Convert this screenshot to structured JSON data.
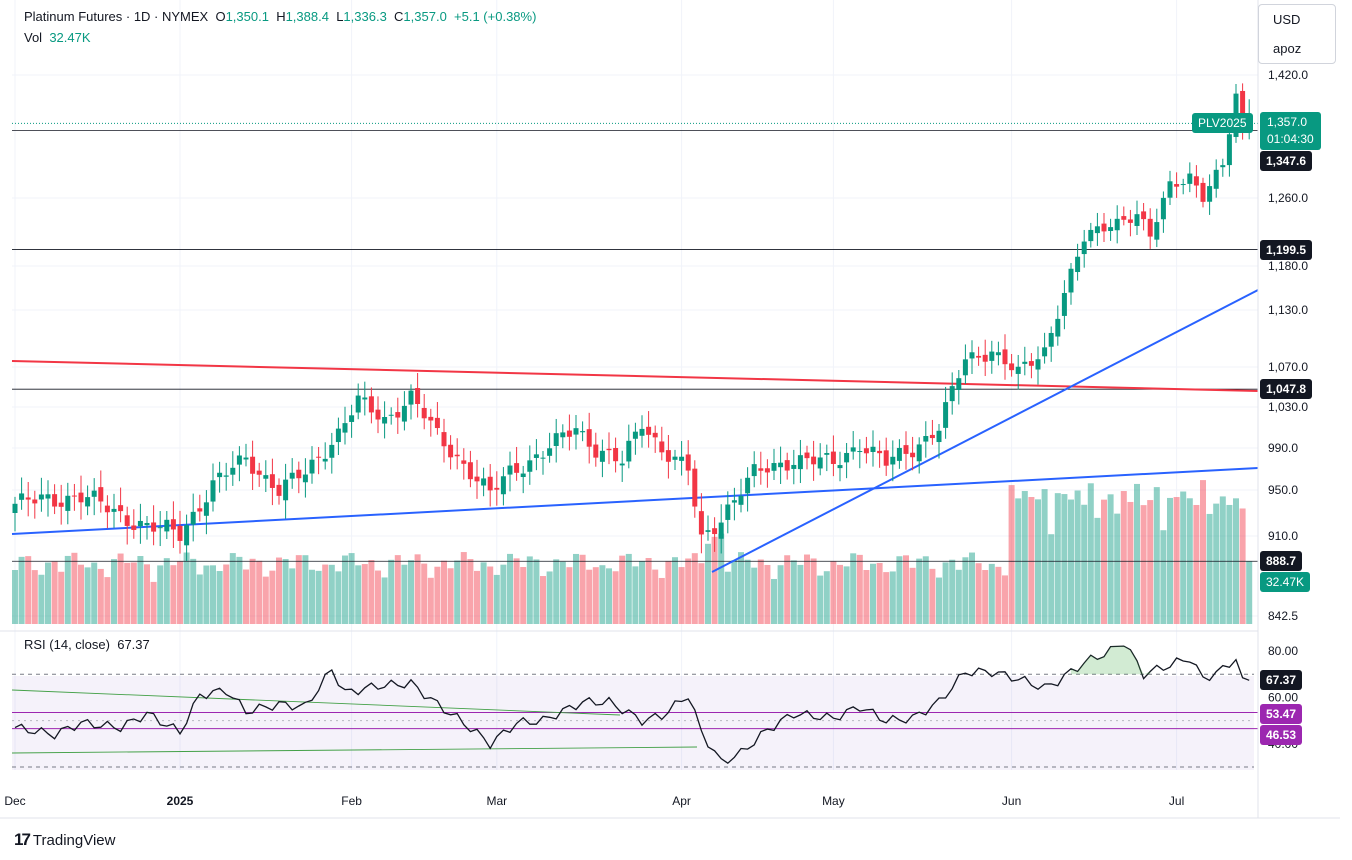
{
  "header": {
    "symbol": "Platinum Futures · 1D · NYMEX",
    "ohlc": {
      "o_label": "O",
      "o": "1,350.1",
      "h_label": "H",
      "h": "1,388.4",
      "l_label": "L",
      "l": "1,336.3",
      "c_label": "C",
      "c": "1,357.0",
      "change": "+5.1 (+0.38%)"
    },
    "vol_label": "Vol",
    "vol_value": "32.47K"
  },
  "currency_box": {
    "currency": "USD",
    "user": "apoz"
  },
  "rsi_legend": {
    "title": "RSI (14, close)",
    "value": "67.37"
  },
  "price_tags": {
    "symbol_tag": "PLV2025",
    "last_price": "1,357.0",
    "countdown": "01:04:30",
    "h_1347": "1,347.6",
    "h_1199": "1,199.5",
    "h_1047": "1,047.8",
    "h_888": "888.7",
    "vol_tag": "32.47K",
    "rsi_now": "67.37",
    "rsi_ma_hi": "53.47",
    "rsi_ma_lo": "46.53"
  },
  "colors": {
    "up": "#089981",
    "down": "#f23645",
    "trend_blue": "#2962ff",
    "resistance_red": "#f23645",
    "rsi": "#7e57c2"
  },
  "logo_text": "TradingView",
  "chart_data": [
    {
      "type": "candlestick",
      "x_labels": [
        "Dec",
        "2025",
        "Feb",
        "Mar",
        "Apr",
        "May",
        "Jun",
        "Jul"
      ],
      "y_ticks": [
        842.5,
        910.0,
        950.0,
        990.0,
        1030.0,
        1070.0,
        1130.0,
        1180.0,
        1260.0,
        1420.0
      ],
      "y_tick_labels": [
        "842.5",
        "910.0",
        "950.0",
        "990.0",
        "1,030.0",
        "1,070.0",
        "1,130.0",
        "1,180.0",
        "1,260.0",
        "1,420.0"
      ],
      "horizontal_levels": [
        1347.6,
        1199.5,
        1047.8,
        888.7
      ],
      "close_key": [
        [
          0,
          938
        ],
        [
          10,
          945
        ],
        [
          20,
          918
        ],
        [
          25,
          912
        ],
        [
          30,
          955
        ],
        [
          35,
          980
        ],
        [
          40,
          950
        ],
        [
          44,
          966
        ],
        [
          49,
          1005
        ],
        [
          52,
          1035
        ],
        [
          56,
          1018
        ],
        [
          60,
          1040
        ],
        [
          64,
          1002
        ],
        [
          68,
          975
        ],
        [
          72,
          945
        ],
        [
          75,
          968
        ],
        [
          80,
          985
        ],
        [
          85,
          1010
        ],
        [
          88,
          990
        ],
        [
          92,
          975
        ],
        [
          95,
          1015
        ],
        [
          98,
          990
        ],
        [
          102,
          968
        ],
        [
          104,
          905
        ],
        [
          108,
          935
        ],
        [
          112,
          965
        ],
        [
          118,
          980
        ],
        [
          124,
          975
        ],
        [
          128,
          995
        ],
        [
          132,
          975
        ],
        [
          136,
          990
        ],
        [
          140,
          1010
        ],
        [
          144,
          1078
        ],
        [
          148,
          1088
        ],
        [
          152,
          1062
        ],
        [
          156,
          1088
        ],
        [
          158,
          1130
        ],
        [
          162,
          1210
        ],
        [
          166,
          1232
        ],
        [
          170,
          1240
        ],
        [
          172,
          1212
        ],
        [
          175,
          1278
        ],
        [
          178,
          1290
        ],
        [
          180,
          1260
        ],
        [
          183,
          1300
        ],
        [
          185,
          1395
        ],
        [
          186,
          1351.9
        ],
        [
          187,
          1357.0
        ]
      ],
      "volume_bars": 188,
      "volume_max_label": "32.47K"
    },
    {
      "type": "line",
      "name": "RSI (14, close)",
      "y_ticks": [
        40.0,
        60.0,
        80.0
      ],
      "bands": [
        30,
        70
      ],
      "moving_average_levels": [
        53.47,
        46.53
      ],
      "key": [
        [
          0,
          47
        ],
        [
          6,
          44
        ],
        [
          10,
          49
        ],
        [
          16,
          47
        ],
        [
          20,
          53
        ],
        [
          25,
          45
        ],
        [
          28,
          61
        ],
        [
          32,
          63
        ],
        [
          35,
          54
        ],
        [
          40,
          57
        ],
        [
          44,
          56
        ],
        [
          48,
          72
        ],
        [
          50,
          62
        ],
        [
          55,
          65
        ],
        [
          60,
          66
        ],
        [
          64,
          57
        ],
        [
          68,
          49
        ],
        [
          72,
          40
        ],
        [
          76,
          49
        ],
        [
          80,
          50
        ],
        [
          86,
          58
        ],
        [
          90,
          58
        ],
        [
          95,
          50
        ],
        [
          98,
          52
        ],
        [
          102,
          61
        ],
        [
          104,
          45
        ],
        [
          107,
          32
        ],
        [
          110,
          36
        ],
        [
          114,
          46
        ],
        [
          118,
          53
        ],
        [
          124,
          51
        ],
        [
          128,
          56
        ],
        [
          132,
          50
        ],
        [
          136,
          51
        ],
        [
          140,
          58
        ],
        [
          144,
          71
        ],
        [
          148,
          71
        ],
        [
          152,
          68
        ],
        [
          156,
          64
        ],
        [
          158,
          67
        ],
        [
          162,
          75
        ],
        [
          166,
          80
        ],
        [
          168,
          84
        ],
        [
          171,
          70
        ],
        [
          175,
          74
        ],
        [
          178,
          77
        ],
        [
          180,
          68
        ],
        [
          183,
          72
        ],
        [
          185,
          77
        ],
        [
          186,
          68.5
        ],
        [
          187,
          67.37
        ]
      ]
    }
  ]
}
